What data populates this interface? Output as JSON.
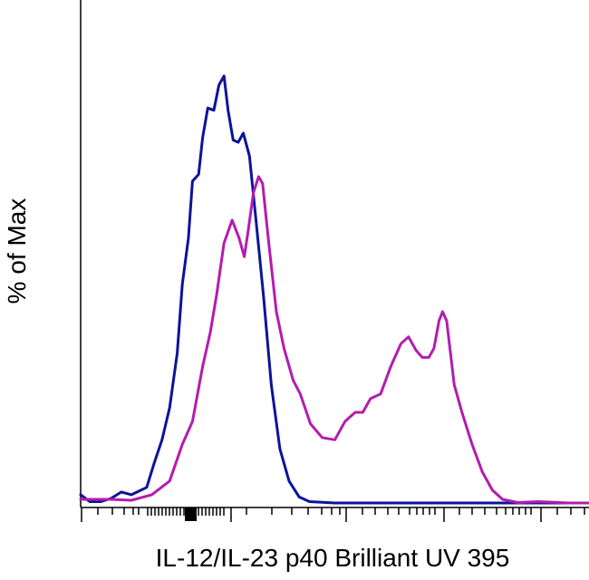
{
  "chart_data": {
    "type": "line",
    "title": "",
    "xlabel": "IL-12/IL-23 p40 Brilliant UV 395",
    "ylabel": "% of Max",
    "x_scale": "log",
    "xlim": [
      0,
      1
    ],
    "ylim": [
      0,
      1
    ],
    "tick_labels_shown": false,
    "grid": false,
    "legend": "none",
    "series": [
      {
        "color": "#0b1499",
        "points": [
          [
            0.0,
            0.02
          ],
          [
            0.018,
            0.005
          ],
          [
            0.04,
            0.005
          ],
          [
            0.06,
            0.012
          ],
          [
            0.08,
            0.026
          ],
          [
            0.1,
            0.02
          ],
          [
            0.13,
            0.036
          ],
          [
            0.145,
            0.09
          ],
          [
            0.16,
            0.14
          ],
          [
            0.175,
            0.21
          ],
          [
            0.19,
            0.33
          ],
          [
            0.2,
            0.48
          ],
          [
            0.212,
            0.58
          ],
          [
            0.22,
            0.705
          ],
          [
            0.232,
            0.72
          ],
          [
            0.24,
            0.8
          ],
          [
            0.25,
            0.865
          ],
          [
            0.262,
            0.86
          ],
          [
            0.272,
            0.915
          ],
          [
            0.282,
            0.935
          ],
          [
            0.29,
            0.86
          ],
          [
            0.3,
            0.795
          ],
          [
            0.31,
            0.79
          ],
          [
            0.32,
            0.81
          ],
          [
            0.332,
            0.76
          ],
          [
            0.345,
            0.62
          ],
          [
            0.36,
            0.45
          ],
          [
            0.375,
            0.26
          ],
          [
            0.392,
            0.12
          ],
          [
            0.41,
            0.05
          ],
          [
            0.43,
            0.015
          ],
          [
            0.45,
            0.005
          ],
          [
            0.5,
            0.002
          ],
          [
            1.0,
            0.002
          ]
        ]
      },
      {
        "color": "#b31dae",
        "points": [
          [
            0.0,
            0.01
          ],
          [
            0.06,
            0.01
          ],
          [
            0.1,
            0.008
          ],
          [
            0.14,
            0.02
          ],
          [
            0.175,
            0.05
          ],
          [
            0.2,
            0.13
          ],
          [
            0.22,
            0.18
          ],
          [
            0.24,
            0.3
          ],
          [
            0.255,
            0.375
          ],
          [
            0.268,
            0.46
          ],
          [
            0.282,
            0.57
          ],
          [
            0.298,
            0.62
          ],
          [
            0.312,
            0.58
          ],
          [
            0.322,
            0.54
          ],
          [
            0.33,
            0.6
          ],
          [
            0.34,
            0.68
          ],
          [
            0.35,
            0.715
          ],
          [
            0.358,
            0.7
          ],
          [
            0.37,
            0.57
          ],
          [
            0.385,
            0.42
          ],
          [
            0.4,
            0.34
          ],
          [
            0.418,
            0.27
          ],
          [
            0.432,
            0.24
          ],
          [
            0.452,
            0.175
          ],
          [
            0.475,
            0.145
          ],
          [
            0.5,
            0.14
          ],
          [
            0.52,
            0.18
          ],
          [
            0.54,
            0.2
          ],
          [
            0.555,
            0.2
          ],
          [
            0.57,
            0.23
          ],
          [
            0.59,
            0.24
          ],
          [
            0.61,
            0.3
          ],
          [
            0.63,
            0.35
          ],
          [
            0.645,
            0.365
          ],
          [
            0.66,
            0.335
          ],
          [
            0.672,
            0.32
          ],
          [
            0.685,
            0.32
          ],
          [
            0.695,
            0.34
          ],
          [
            0.705,
            0.4
          ],
          [
            0.712,
            0.42
          ],
          [
            0.72,
            0.4
          ],
          [
            0.735,
            0.26
          ],
          [
            0.75,
            0.2
          ],
          [
            0.77,
            0.13
          ],
          [
            0.79,
            0.07
          ],
          [
            0.81,
            0.03
          ],
          [
            0.83,
            0.01
          ],
          [
            0.86,
            0.003
          ],
          [
            0.9,
            0.005
          ],
          [
            0.96,
            0.002
          ],
          [
            1.0,
            0.002
          ]
        ]
      }
    ]
  }
}
